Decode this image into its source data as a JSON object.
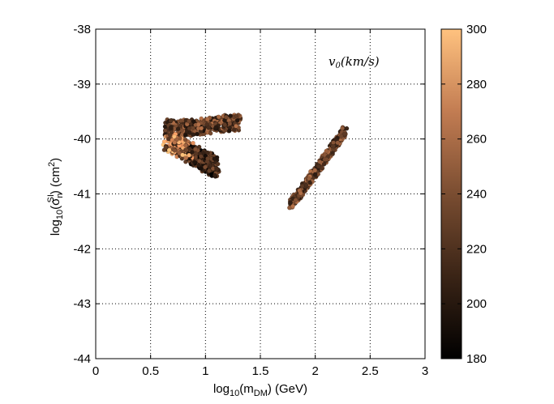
{
  "chart_data": {
    "type": "scatter",
    "title": "",
    "xlabel": {
      "pre": "log",
      "sub1": "10",
      "mid": "(m",
      "sub2": "DM",
      "post": ") (GeV)"
    },
    "ylabel": {
      "pre": "log",
      "sub1": "10",
      "mid": "(σ",
      "sub2": "n",
      "sup2": "SI",
      "post": ") (cm",
      "sup3": "2",
      "end": ")"
    },
    "xlim": [
      0,
      3
    ],
    "ylim": [
      -44,
      -38
    ],
    "xticks": [
      0,
      0.5,
      1,
      1.5,
      2,
      2.5,
      3
    ],
    "xtick_labels": [
      "0",
      "0.5",
      "1",
      "1.5",
      "2",
      "2.5",
      "3"
    ],
    "yticks": [
      -44,
      -43,
      -42,
      -41,
      -40,
      -39,
      -38
    ],
    "ytick_labels": [
      "-44",
      "-43",
      "-42",
      "-41",
      "-40",
      "-39",
      "-38"
    ],
    "grid": true,
    "grid_style": "dotted",
    "annotation": "v_0(km/s)",
    "colorbar": {
      "label": "v_0(km/s)",
      "range": [
        180,
        300
      ],
      "ticks": [
        180,
        200,
        220,
        240,
        260,
        280,
        300
      ],
      "tick_labels": [
        "180",
        "200",
        "220",
        "240",
        "260",
        "280",
        "300"
      ],
      "colormap": "copper",
      "colors": [
        "#000000",
        "#2a1a10",
        "#5c3a25",
        "#8f5a3a",
        "#c07a50",
        "#e99a66",
        "#ffc27f"
      ]
    },
    "clusters": [
      {
        "region": "upper band",
        "x_range": [
          0.63,
          1.32
        ],
        "y_range": [
          -39.9,
          -39.6
        ],
        "v0_range": [
          180,
          300
        ]
      },
      {
        "region": "lower-left lobe",
        "x_range": [
          0.65,
          1.1
        ],
        "y_range": [
          -40.7,
          -39.8
        ],
        "v0_range": [
          180,
          300
        ]
      },
      {
        "region": "diagonal band",
        "x_range": [
          1.78,
          2.27
        ],
        "y_range": [
          -41.2,
          -39.85
        ],
        "v0_range": [
          180,
          300
        ]
      }
    ]
  }
}
